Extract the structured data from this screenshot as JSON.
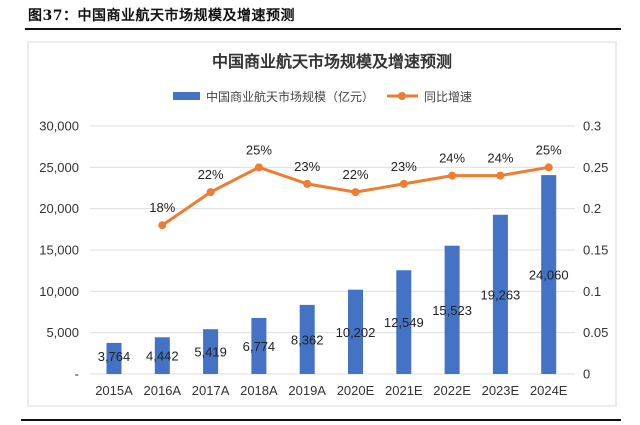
{
  "figure": {
    "caption": "图37：中国商业航天市场规模及增速预测"
  },
  "chart_data": {
    "type": "bar+line",
    "title": "中国商业航天市场规模及增速预测",
    "categories": [
      "2015A",
      "2016A",
      "2017A",
      "2018A",
      "2019A",
      "2020E",
      "2021E",
      "2022E",
      "2023E",
      "2024E"
    ],
    "series": [
      {
        "name": "中国商业航天市场规模（亿元）",
        "type": "bar",
        "axis": "left",
        "color": "#4472C4",
        "values": [
          3764,
          4442,
          5419,
          6774,
          8362,
          10202,
          12549,
          15523,
          19263,
          24060
        ],
        "labels": [
          "3,764",
          "4,442",
          "5,419",
          "6,774",
          "8,362",
          "10,202",
          "12,549",
          "15,523",
          "19,263",
          "24,060"
        ]
      },
      {
        "name": "同比增速",
        "type": "line",
        "axis": "right",
        "color": "#ED7D31",
        "values": [
          null,
          0.18,
          0.22,
          0.25,
          0.23,
          0.22,
          0.23,
          0.24,
          0.24,
          0.25
        ],
        "labels": [
          null,
          "18%",
          "22%",
          "25%",
          "23%",
          "22%",
          "23%",
          "24%",
          "24%",
          "25%"
        ]
      }
    ],
    "y_left": {
      "range": [
        0,
        30000
      ],
      "ticks": [
        0,
        5000,
        10000,
        15000,
        20000,
        25000,
        30000
      ],
      "tick_labels": [
        "-",
        "5,000",
        "10,000",
        "15,000",
        "20,000",
        "25,000",
        "30,000"
      ]
    },
    "y_right": {
      "range": [
        0,
        0.3
      ],
      "ticks": [
        0,
        0.05,
        0.1,
        0.15,
        0.2,
        0.25,
        0.3
      ],
      "tick_labels": [
        "0",
        "0.05",
        "0.1",
        "0.15",
        "0.2",
        "0.25",
        "0.3"
      ]
    },
    "grid": true,
    "legend_position": "top-center",
    "xlabel": "",
    "ylabel": ""
  }
}
